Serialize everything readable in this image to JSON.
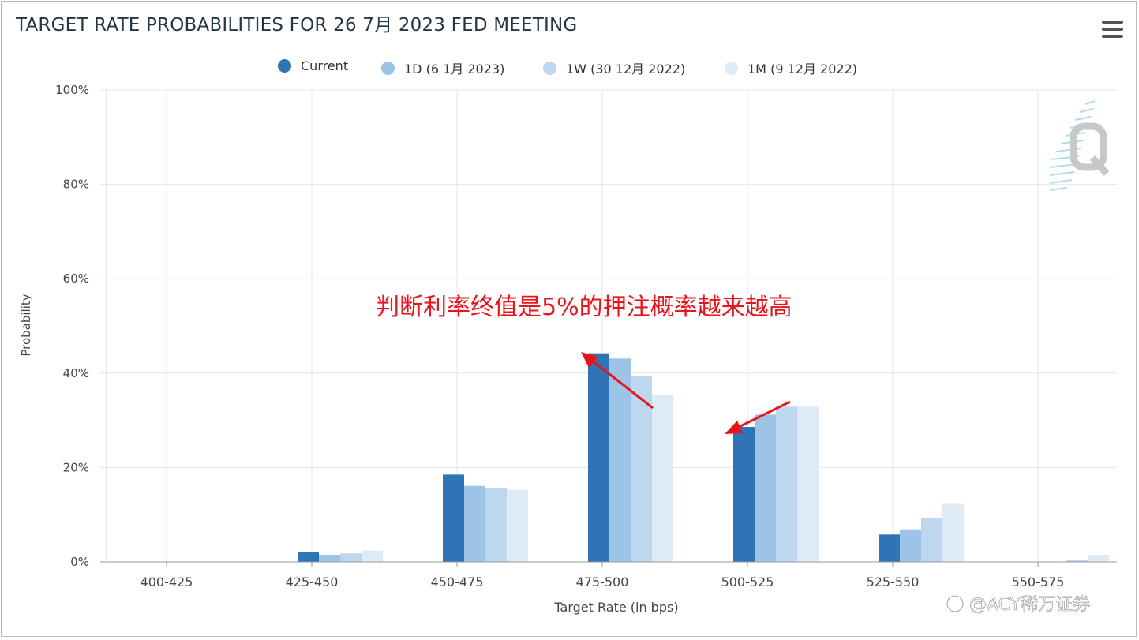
{
  "header": {
    "title": "TARGET RATE PROBABILITIES FOR 26 7月 2023 FED MEETING",
    "menu_icon": "hamburger-menu-icon"
  },
  "watermark": {
    "text": "@ACY稀万证券",
    "icon": "zhihu-logo-icon"
  },
  "annotation": {
    "text": "判断利率终值是5%的押注概率越来越高",
    "color": "#e8141c"
  },
  "chart_data": {
    "type": "bar",
    "title": "TARGET RATE PROBABILITIES FOR 26 7月 2023 FED MEETING",
    "xlabel": "Target Rate (in bps)",
    "ylabel": "Probability",
    "ylim": [
      0,
      100
    ],
    "yticks": [
      "0%",
      "20%",
      "40%",
      "60%",
      "80%",
      "100%"
    ],
    "categories": [
      "400-425",
      "425-450",
      "450-475",
      "475-500",
      "500-525",
      "525-550",
      "550-575"
    ],
    "series": [
      {
        "name": "Current",
        "color": "#2e75b6",
        "values": [
          0,
          2.0,
          18.5,
          44.2,
          28.6,
          5.8,
          0
        ]
      },
      {
        "name": "1D (6 1月 2023)",
        "color": "#9dc3e6",
        "values": [
          0,
          1.5,
          16.1,
          43.1,
          31.2,
          6.9,
          0
        ]
      },
      {
        "name": "1W (30 12月 2022)",
        "color": "#bdd7ee",
        "values": [
          0,
          1.8,
          15.6,
          39.3,
          32.9,
          9.3,
          0.4
        ]
      },
      {
        "name": "1M (9 12月 2022)",
        "color": "#deebf7",
        "values": [
          0,
          2.4,
          15.3,
          35.3,
          32.9,
          12.3,
          1.5
        ]
      }
    ],
    "grid": true,
    "legend_position": "top-center"
  }
}
